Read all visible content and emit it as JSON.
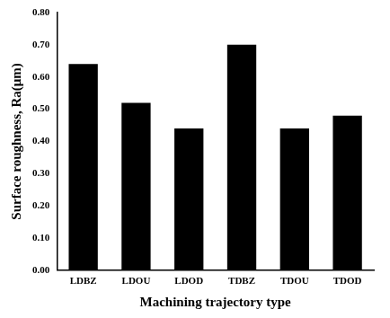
{
  "chart_data": {
    "type": "bar",
    "x_label": "Machining trajectory type",
    "y_label": "Surface roughness, Ra(μm)",
    "categories": [
      "LDBZ",
      "LDOU",
      "LDOD",
      "TDBZ",
      "TDOU",
      "TDOD"
    ],
    "values": [
      0.64,
      0.52,
      0.44,
      0.7,
      0.44,
      0.48
    ],
    "color": "#000000",
    "ylim": [
      0,
      0.8
    ],
    "yticks": [
      {
        "value": 0,
        "label": "0.00"
      },
      {
        "value": 0.1,
        "label": "0.10"
      },
      {
        "value": 0.2,
        "label": "0.20"
      },
      {
        "value": 0.3,
        "label": "0.30"
      },
      {
        "value": 0.4,
        "label": "0.40"
      },
      {
        "value": 0.5,
        "label": "0.50"
      },
      {
        "value": 0.6,
        "label": "0.60"
      },
      {
        "value": 0.7,
        "label": "0.70"
      },
      {
        "value": 0.8,
        "label": "0.80"
      }
    ],
    "grid": false
  }
}
